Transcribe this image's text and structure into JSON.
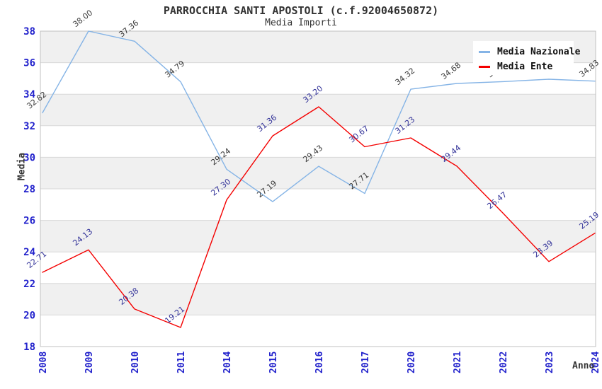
{
  "title": "PARROCCHIA SANTI APOSTOLI (c.f.92004650872)",
  "subtitle": "Media Importi",
  "legend": {
    "position": "top-right",
    "items": [
      {
        "label": "Media Nazionale",
        "color": "#85b4e6"
      },
      {
        "label": "Media Ente",
        "color": "#f40000"
      }
    ]
  },
  "chart_data": {
    "type": "line",
    "title": "PARROCCHIA SANTI APOSTOLI (c.f.92004650872)",
    "subtitle": "Media Importi",
    "xlabel": "Anno",
    "ylabel": "Media",
    "categories": [
      "2008",
      "2009",
      "2010",
      "2011",
      "2014",
      "2015",
      "2016",
      "2017",
      "2020",
      "2021",
      "2022",
      "2023",
      "2024"
    ],
    "series": [
      {
        "name": "Media Nazionale",
        "color": "#85b4e6",
        "label_color": "#3a3a3a",
        "values": [
          32.82,
          38.0,
          37.36,
          34.79,
          29.24,
          27.19,
          29.43,
          27.71,
          34.32,
          34.68,
          34.8,
          34.95,
          34.83
        ]
      },
      {
        "name": "Media Ente",
        "color": "#f40000",
        "label_color": "#333399",
        "values": [
          22.71,
          24.13,
          20.38,
          19.21,
          27.3,
          31.36,
          33.2,
          30.67,
          31.23,
          29.44,
          26.47,
          23.39,
          25.19
        ]
      }
    ],
    "ylim": [
      18,
      38
    ],
    "ytick_step": 2,
    "yticks": [
      18,
      20,
      22,
      24,
      26,
      28,
      30,
      32,
      34,
      36,
      38
    ],
    "grid": true,
    "alternating_bands": true,
    "legend_position": "top-right",
    "point_labels_visible": true
  },
  "colors": {
    "band": "#f0f0f0",
    "grid": "#d8d8d8",
    "plot_border": "#c0c0c0",
    "tick_label": "#2222cc",
    "title": "#333333",
    "axis_title": "#333333",
    "legend_text": "#111111",
    "legend_bg": "#ffffff",
    "series_nazionale": "#85b4e6",
    "series_ente": "#f40000",
    "point_label_nazionale": "#3a3a3a",
    "point_label_ente": "#333399"
  }
}
